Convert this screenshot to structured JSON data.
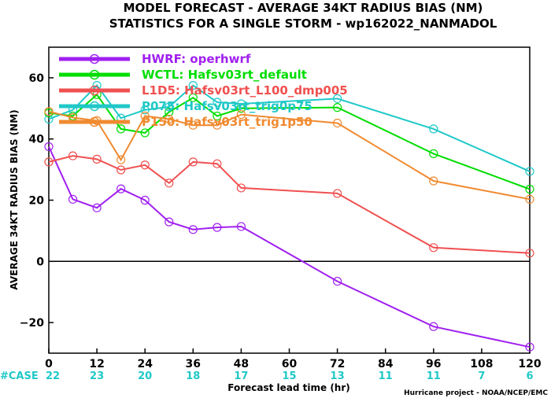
{
  "chart_data": {
    "type": "line",
    "title": "MODEL FORECAST - AVERAGE 34KT RADIUS BIAS (NM)",
    "subtitle": "STATISTICS FOR A SINGLE STORM - wp162022_NANMADOL",
    "xlabel": "Forecast lead time (hr)",
    "ylabel": "AVERAGE 34KT RADIUS BIAS (NM)",
    "xlim": [
      0,
      120
    ],
    "ylim": [
      -30,
      70
    ],
    "x_ticks": [
      0,
      12,
      24,
      36,
      48,
      60,
      72,
      84,
      96,
      108,
      120
    ],
    "y_ticks": [
      -20,
      0,
      20,
      40,
      60
    ],
    "zero_line": true,
    "legend_position": "top-left",
    "case_label": "#CASE",
    "case_counts": [
      "22",
      "23",
      "20",
      "18",
      "17",
      "15",
      "13",
      "11",
      "11",
      "7",
      "6"
    ],
    "credit": "Hurricane project - NOAA/NCEP/EMC",
    "series": [
      {
        "name": "HWRF: operhwrf",
        "color": "#a020f0",
        "x": [
          0,
          6,
          12,
          18,
          24,
          30,
          36,
          42,
          48,
          72,
          96,
          120
        ],
        "y": [
          37.5,
          20.3,
          17.5,
          23.7,
          20.0,
          12.9,
          10.4,
          11.1,
          11.4,
          -6.5,
          -21.3,
          -28.0
        ]
      },
      {
        "name": "WCTL: Hafsv03rt_default",
        "color": "#00dd00",
        "x": [
          0,
          6,
          12,
          18,
          24,
          30,
          36,
          42,
          48,
          72,
          96,
          120
        ],
        "y": [
          48.5,
          47.5,
          54.5,
          43.3,
          42.0,
          48.8,
          53.5,
          47.5,
          50.0,
          50.3,
          35.2,
          23.6
        ]
      },
      {
        "name": "L1D5: Hafsv03rt_L100_dmp005",
        "color": "#f05050",
        "x": [
          0,
          6,
          12,
          18,
          24,
          30,
          36,
          42,
          48,
          72,
          96,
          120
        ],
        "y": [
          32.5,
          34.5,
          33.4,
          29.9,
          31.5,
          25.6,
          32.5,
          31.9,
          24.0,
          22.2,
          4.5,
          2.7
        ]
      },
      {
        "name": "P075: Hafsv03rt_trig0p75",
        "color": "#20c8c8",
        "x": [
          0,
          6,
          12,
          18,
          24,
          30,
          36,
          42,
          48,
          72,
          96,
          120
        ],
        "y": [
          46.5,
          49.5,
          57.5,
          46.8,
          49.5,
          50.5,
          57.5,
          52.0,
          51.5,
          53.2,
          43.3,
          29.4
        ]
      },
      {
        "name": "P150: Hafsv03rt_trig1p50",
        "color": "#f08a30",
        "x": [
          0,
          6,
          12,
          18,
          24,
          30,
          36,
          42,
          48,
          72,
          96,
          120
        ],
        "y": [
          49.0,
          47.0,
          46.0,
          33.2,
          47.5,
          46.5,
          44.5,
          44.5,
          48.0,
          45.2,
          26.3,
          20.3
        ]
      }
    ]
  }
}
